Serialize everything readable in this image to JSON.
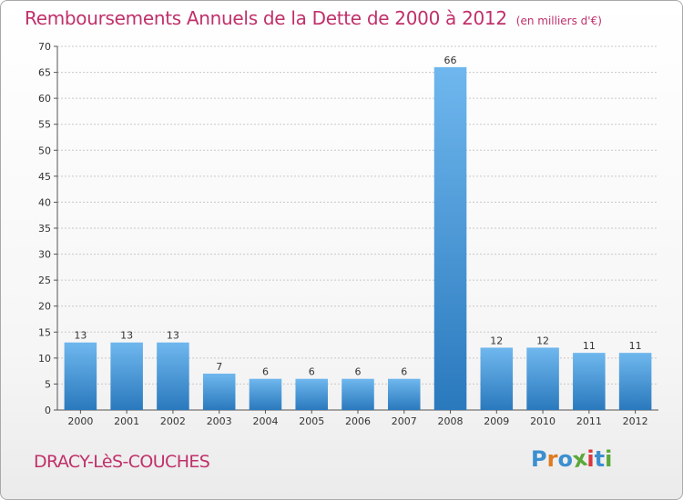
{
  "header": {
    "title": "Remboursements Annuels de la Dette de 2000 à 2012",
    "unit": "(en milliers d'€)"
  },
  "footer": {
    "commune": "DRACY-LèS-COUCHES",
    "logo_letters": [
      "P",
      "r",
      "o",
      "x",
      "i",
      "t",
      "i"
    ],
    "logo_colors": [
      "#3b8fd0",
      "#e07a1f",
      "#3b8fd0",
      "#5aa83a",
      "#d9363e",
      "#3b8fd0",
      "#5aa83a"
    ]
  },
  "colors": {
    "title": "#c0306a",
    "bar_light": "#6fb7ee",
    "bar_dark": "#2a79bd",
    "axis": "#555555",
    "grid": "#c8c8c8"
  },
  "chart_data": {
    "type": "bar",
    "categories": [
      "2000",
      "2001",
      "2002",
      "2003",
      "2004",
      "2005",
      "2006",
      "2007",
      "2008",
      "2009",
      "2010",
      "2011",
      "2012"
    ],
    "values": [
      13,
      13,
      13,
      7,
      6,
      6,
      6,
      6,
      66,
      12,
      12,
      11,
      11
    ],
    "ylim": [
      0,
      70
    ],
    "yticks": [
      0,
      5,
      10,
      15,
      20,
      25,
      30,
      35,
      40,
      45,
      50,
      55,
      60,
      65,
      70
    ],
    "grid": true,
    "data_labels": true
  }
}
